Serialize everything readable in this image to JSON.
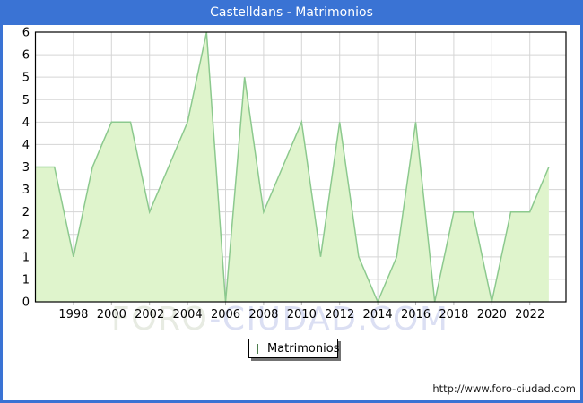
{
  "title": "Castelldans - Matrimonios",
  "watermark": {
    "part1": "FORO",
    "part2": "-CIUDAD.COM"
  },
  "legend": {
    "label": "Matrimonios"
  },
  "footer_url": "http://www.foro-ciudad.com",
  "colors": {
    "titlebar": "#3a73d4",
    "area_fill": "#dff4cc",
    "line": "#8cc98e",
    "grid": "#d5d5d5",
    "axis": "#000000",
    "legend_swatch": "#c6f0a0"
  },
  "chart_data": {
    "type": "area",
    "title": "Castelldans - Matrimonios",
    "series_name": "Matrimonios",
    "x": [
      1996,
      1997,
      1998,
      1999,
      2000,
      2001,
      2002,
      2003,
      2004,
      2005,
      2006,
      2007,
      2008,
      2009,
      2010,
      2011,
      2012,
      2013,
      2014,
      2015,
      2016,
      2017,
      2018,
      2019,
      2020,
      2021,
      2022,
      2023
    ],
    "values": [
      3,
      3,
      1,
      3,
      4,
      4,
      2,
      3,
      4,
      6,
      0,
      5,
      2,
      3,
      4,
      1,
      4,
      1,
      0,
      1,
      4,
      0,
      2,
      2,
      0,
      2,
      2,
      3
    ],
    "ylim": [
      0,
      6
    ],
    "grid": true,
    "legend_position": "bottom-center",
    "xticks": [
      1998,
      2000,
      2002,
      2004,
      2006,
      2008,
      2010,
      2012,
      2014,
      2016,
      2018,
      2020,
      2022
    ],
    "yticks": [
      {
        "v": 0,
        "label": "0"
      },
      {
        "v": 0.5,
        "label": "1"
      },
      {
        "v": 1,
        "label": "1"
      },
      {
        "v": 1.5,
        "label": "2"
      },
      {
        "v": 2,
        "label": "2"
      },
      {
        "v": 2.5,
        "label": "3"
      },
      {
        "v": 3,
        "label": "3"
      },
      {
        "v": 3.5,
        "label": "4"
      },
      {
        "v": 4,
        "label": "4"
      },
      {
        "v": 4.5,
        "label": "5"
      },
      {
        "v": 5,
        "label": "5"
      },
      {
        "v": 5.5,
        "label": "6"
      },
      {
        "v": 6,
        "label": "6"
      }
    ]
  }
}
